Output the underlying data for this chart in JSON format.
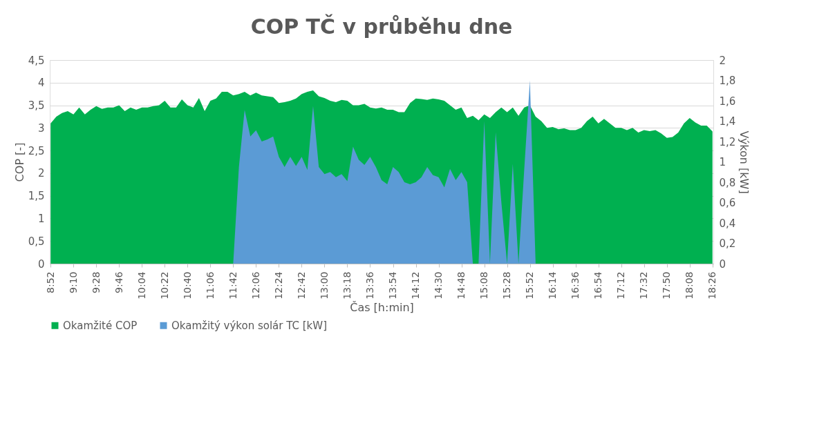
{
  "chart_data": {
    "type": "area",
    "title": "COP TČ v průběhu dne",
    "xlabel": "Čas [h:min]",
    "ylabel": "COP [-]",
    "y2label": "Výkon [kW]",
    "categories": [
      "8:52",
      null,
      null,
      null,
      "9:10",
      null,
      null,
      null,
      "9:28",
      null,
      null,
      null,
      "9:46",
      null,
      null,
      null,
      "10:04",
      null,
      null,
      null,
      "10:22",
      null,
      null,
      null,
      "10:40",
      null,
      null,
      null,
      "11:06",
      null,
      null,
      null,
      "11:42",
      null,
      null,
      null,
      "12:06",
      null,
      null,
      null,
      "12:24",
      null,
      null,
      null,
      "12:42",
      null,
      null,
      null,
      "13:00",
      null,
      null,
      null,
      "13:18",
      null,
      null,
      null,
      "13:36",
      null,
      null,
      null,
      "13:54",
      null,
      null,
      null,
      "14:12",
      null,
      null,
      null,
      "14:30",
      null,
      null,
      null,
      "14:48",
      null,
      null,
      null,
      "15:08",
      null,
      null,
      null,
      "15:28",
      null,
      null,
      null,
      "15:52",
      null,
      null,
      null,
      "16:14",
      null,
      null,
      null,
      "16:36",
      null,
      null,
      null,
      "16:54",
      null,
      null,
      null,
      "17:12",
      null,
      null,
      null,
      "17:32",
      null,
      null,
      null,
      "17:50",
      null,
      null,
      null,
      "18:08",
      null,
      null,
      null,
      "18:26"
    ],
    "series": [
      {
        "name": "Okamžité COP",
        "color": "#00b050",
        "values": [
          3.1,
          3.25,
          3.33,
          3.37,
          3.3,
          3.45,
          3.3,
          3.4,
          3.48,
          3.42,
          3.45,
          3.45,
          3.5,
          3.37,
          3.45,
          3.4,
          3.45,
          3.45,
          3.48,
          3.5,
          3.6,
          3.45,
          3.45,
          3.63,
          3.5,
          3.45,
          3.66,
          3.37,
          3.6,
          3.65,
          3.8,
          3.8,
          3.72,
          3.75,
          3.8,
          3.72,
          3.78,
          3.72,
          3.7,
          3.68,
          3.55,
          3.57,
          3.6,
          3.65,
          3.75,
          3.8,
          3.83,
          3.7,
          3.66,
          3.6,
          3.57,
          3.62,
          3.6,
          3.5,
          3.5,
          3.53,
          3.45,
          3.43,
          3.45,
          3.4,
          3.4,
          3.35,
          3.35,
          3.55,
          3.65,
          3.64,
          3.62,
          3.65,
          3.63,
          3.6,
          3.5,
          3.4,
          3.45,
          3.22,
          3.27,
          3.17,
          3.3,
          3.22,
          3.35,
          3.45,
          3.35,
          3.45,
          3.27,
          3.45,
          3.5,
          3.25,
          3.15,
          3.0,
          3.02,
          2.97,
          2.99,
          2.95,
          2.95,
          3.0,
          3.15,
          3.25,
          3.1,
          3.2,
          3.1,
          3.0,
          3.0,
          2.95,
          3.0,
          2.9,
          2.95,
          2.93,
          2.95,
          2.88,
          2.78,
          2.8,
          2.9,
          3.1,
          3.22,
          3.12,
          3.05,
          3.05,
          2.92
        ]
      },
      {
        "name": "Okamžitý výkon solár TC [kW]",
        "color": "#5b9bd5",
        "axis": "y2",
        "values": [
          null,
          null,
          null,
          null,
          null,
          null,
          null,
          null,
          null,
          null,
          null,
          null,
          null,
          null,
          null,
          null,
          null,
          null,
          null,
          null,
          null,
          null,
          null,
          null,
          null,
          null,
          null,
          null,
          null,
          null,
          null,
          null,
          0,
          0.95,
          1.51,
          1.25,
          1.31,
          1.2,
          1.22,
          1.25,
          1.05,
          0.95,
          1.05,
          0.96,
          1.05,
          0.92,
          1.55,
          0.95,
          0.88,
          0.9,
          0.85,
          0.88,
          0.81,
          1.15,
          1.02,
          0.97,
          1.05,
          0.95,
          0.82,
          0.78,
          0.95,
          0.9,
          0.8,
          0.78,
          0.8,
          0.85,
          0.95,
          0.87,
          0.85,
          0.75,
          0.93,
          0.82,
          0.9,
          0.8,
          0,
          0,
          1.4,
          0,
          1.29,
          0.6,
          0,
          0.98,
          0,
          0.92,
          1.8,
          0,
          null,
          null,
          null,
          null,
          null,
          null,
          null,
          null,
          null,
          null,
          null,
          null,
          null,
          null,
          null,
          null,
          null,
          null,
          null,
          null,
          null,
          null,
          null,
          null,
          null,
          null,
          null,
          null,
          null,
          null,
          null
        ]
      }
    ],
    "ylim": [
      0,
      4.5
    ],
    "yticks": [
      0,
      {
        "value": 0.5,
        "label": "0,5"
      },
      1,
      {
        "value": 1.5,
        "label": "1,5"
      },
      2,
      {
        "value": 2.5,
        "label": "2,5"
      },
      3,
      {
        "value": 3.5,
        "label": "3,5"
      },
      4,
      {
        "value": 4.5,
        "label": "4,5"
      }
    ],
    "y2lim": [
      0,
      2
    ],
    "y2ticks": [
      0,
      {
        "value": 0.2,
        "label": "0,2"
      },
      {
        "value": 0.4,
        "label": "0,4"
      },
      {
        "value": 0.6,
        "label": "0,6"
      },
      {
        "value": 0.8,
        "label": "0,8"
      },
      1,
      {
        "value": 1.2,
        "label": "1,2"
      },
      {
        "value": 1.4,
        "label": "1,4"
      },
      {
        "value": 1.6,
        "label": "1,6"
      },
      {
        "value": 1.8,
        "label": "1,8"
      },
      2
    ],
    "grid": "y",
    "legend": "bottom"
  }
}
